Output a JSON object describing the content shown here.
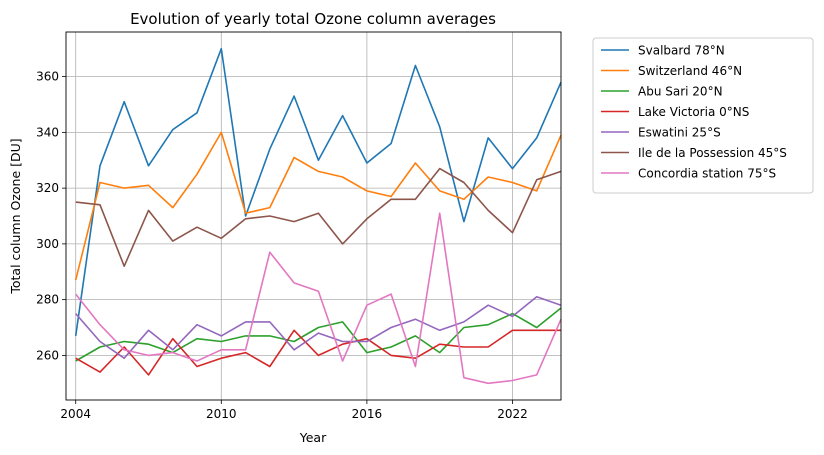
{
  "chart_data": {
    "type": "line",
    "title": "Evolution of yearly total Ozone column averages",
    "xlabel": "Year",
    "ylabel": "Total column Ozone [DU]",
    "xlim": [
      2003.6,
      2024.0
    ],
    "ylim": [
      244,
      376
    ],
    "xticks": [
      2004,
      2010,
      2016,
      2022
    ],
    "yticks": [
      260,
      280,
      300,
      320,
      340,
      360
    ],
    "grid": true,
    "legend_position": "outside-right",
    "x": [
      2004,
      2005,
      2006,
      2007,
      2008,
      2009,
      2010,
      2011,
      2012,
      2013,
      2014,
      2015,
      2016,
      2017,
      2018,
      2019,
      2020,
      2021,
      2022,
      2023,
      2024
    ],
    "series": [
      {
        "name": "Svalbard 78°N",
        "color": "#1f77b4",
        "values": [
          267,
          328,
          351,
          328,
          341,
          347,
          370,
          310,
          334,
          353,
          330,
          346,
          329,
          336,
          364,
          342,
          308,
          338,
          327,
          338,
          358
        ]
      },
      {
        "name": "Switzerland 46°N",
        "color": "#ff7f0e",
        "values": [
          287,
          322,
          320,
          321,
          313,
          325,
          340,
          311,
          313,
          331,
          326,
          324,
          319,
          317,
          329,
          319,
          316,
          324,
          322,
          319,
          339
        ]
      },
      {
        "name": "Abu Sari 20°N",
        "color": "#2ca02c",
        "values": [
          258,
          263,
          265,
          264,
          261,
          266,
          265,
          267,
          267,
          265,
          270,
          272,
          261,
          263,
          267,
          261,
          270,
          271,
          275,
          270,
          277
        ]
      },
      {
        "name": "Lake Victoria 0°NS",
        "color": "#d62728",
        "values": [
          259,
          254,
          263,
          253,
          266,
          256,
          259,
          261,
          256,
          269,
          260,
          264,
          266,
          260,
          259,
          264,
          263,
          263,
          269,
          269,
          269
        ]
      },
      {
        "name": "Eswatini 25°S",
        "color": "#9467bd",
        "values": [
          275,
          265,
          259,
          269,
          262,
          271,
          267,
          272,
          272,
          262,
          268,
          265,
          265,
          270,
          273,
          269,
          272,
          278,
          274,
          281,
          278
        ]
      },
      {
        "name": "Ile de la Possession 45°S",
        "color": "#8c564b",
        "values": [
          315,
          314,
          292,
          312,
          301,
          306,
          302,
          309,
          310,
          308,
          311,
          300,
          309,
          316,
          316,
          327,
          322,
          312,
          304,
          323,
          326
        ]
      },
      {
        "name": "Concordia station 75°S",
        "color": "#e377c2",
        "values": [
          282,
          271,
          262,
          260,
          261,
          258,
          262,
          262,
          297,
          286,
          283,
          258,
          278,
          282,
          256,
          311,
          252,
          250,
          251,
          253,
          273
        ]
      }
    ]
  }
}
